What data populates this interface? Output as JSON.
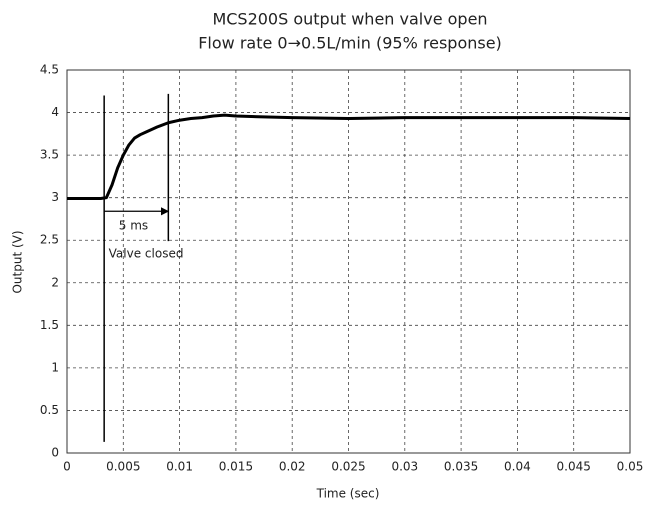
{
  "chart_data": {
    "type": "line",
    "title": "MCS200S output when valve open",
    "subtitle": "Flow rate 0→0.5L/min (95% response)",
    "x_label": "Time (sec)",
    "y_label": "Output (V)",
    "x": [
      0,
      0.001,
      0.002,
      0.003,
      0.0035,
      0.004,
      0.0045,
      0.005,
      0.0055,
      0.006,
      0.0065,
      0.007,
      0.008,
      0.009,
      0.01,
      0.011,
      0.012,
      0.013,
      0.014,
      0.015,
      0.017,
      0.02,
      0.025,
      0.03,
      0.035,
      0.04,
      0.045,
      0.05
    ],
    "values": [
      2.99,
      2.99,
      2.99,
      2.99,
      3.0,
      3.15,
      3.35,
      3.5,
      3.62,
      3.7,
      3.74,
      3.77,
      3.83,
      3.88,
      3.91,
      3.93,
      3.94,
      3.96,
      3.97,
      3.96,
      3.95,
      3.94,
      3.93,
      3.94,
      3.94,
      3.94,
      3.94,
      3.93
    ],
    "color": "#000000",
    "xlim": [
      0,
      0.05
    ],
    "xticks": [
      0,
      0.005,
      0.01,
      0.015,
      0.02,
      0.025,
      0.03,
      0.035,
      0.04,
      0.045,
      0.05
    ],
    "ylim": [
      0,
      4.5
    ],
    "yticks": [
      0,
      0.5,
      1,
      1.5,
      2,
      2.5,
      3,
      3.5,
      4,
      4.5
    ],
    "grid": true,
    "vlines": [
      {
        "x": 0.0033,
        "y": [
          0.13,
          4.2
        ]
      },
      {
        "x": 0.009,
        "y": [
          2.49,
          4.22
        ]
      }
    ],
    "arrow": {
      "x": [
        0.0033,
        0.009
      ],
      "y": 2.84
    },
    "annotations": [
      {
        "text": "5 ms",
        "x": 0.0046,
        "y": 2.67
      },
      {
        "text": "Valve closed",
        "x": 0.0037,
        "y": 2.34
      }
    ]
  }
}
